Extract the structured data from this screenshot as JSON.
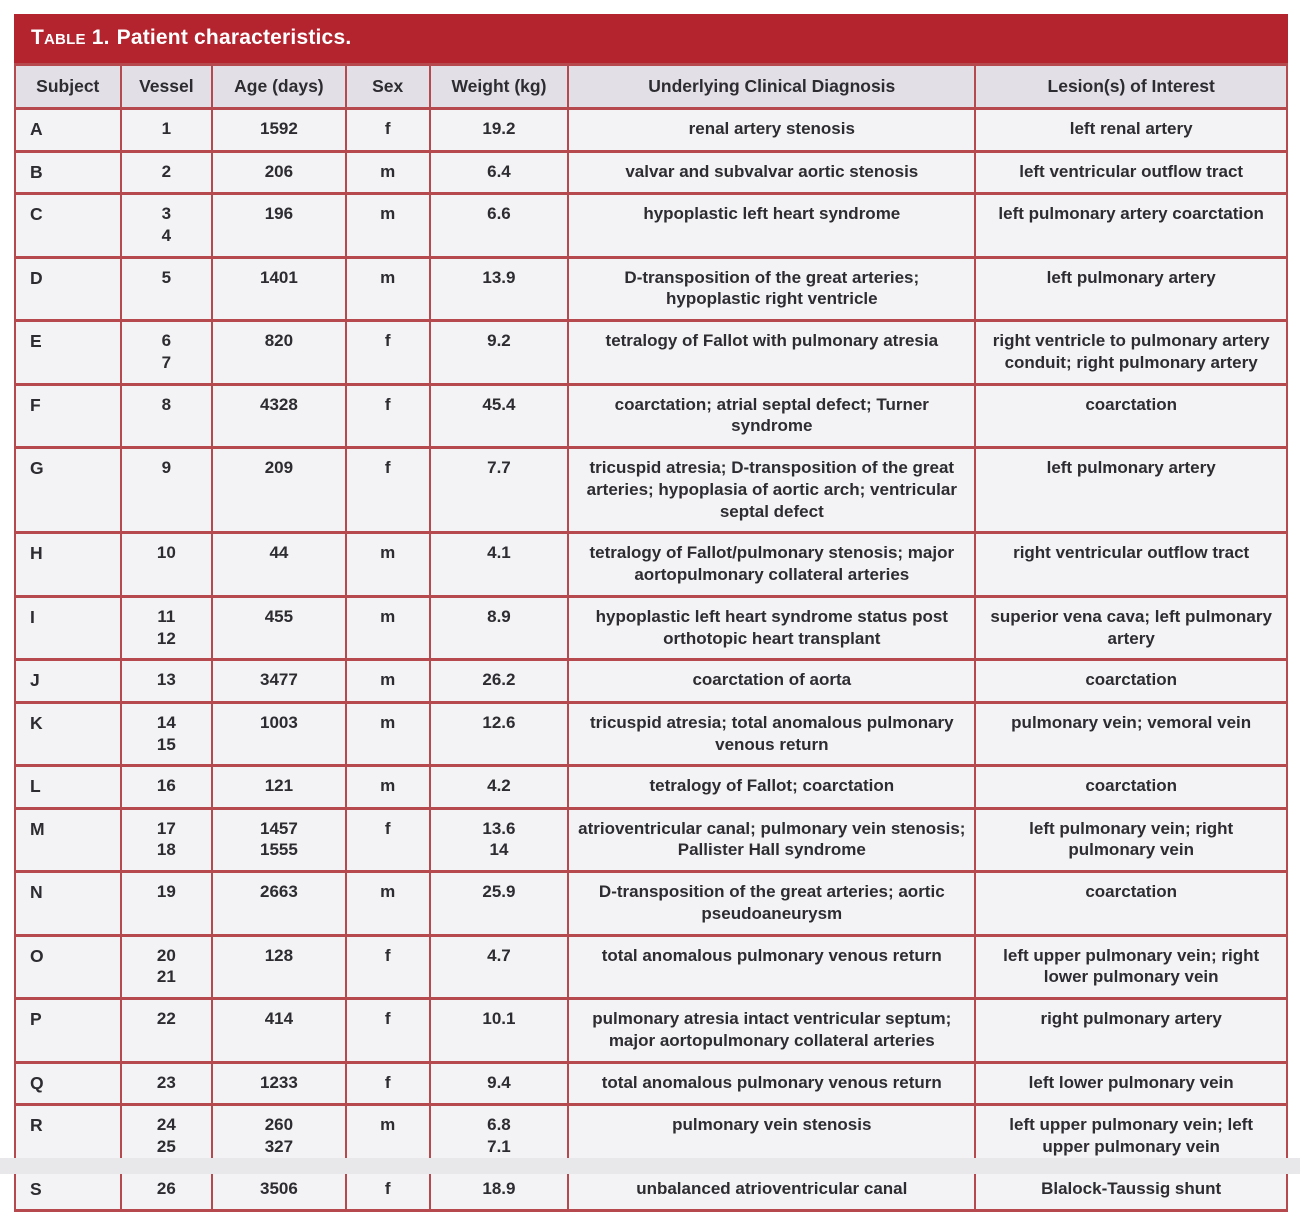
{
  "table": {
    "title": {
      "prefix": "Table 1.",
      "rest": "Patient characteristics."
    },
    "columns": [
      "Subject",
      "Vessel",
      "Age (days)",
      "Sex",
      "Weight (kg)",
      "Underlying Clinical Diagnosis",
      "Lesion(s) of Interest"
    ],
    "rows": [
      {
        "subject": "A",
        "vessel": "1",
        "age": "1592",
        "sex": "f",
        "weight": "19.2",
        "diagnosis": "renal artery stenosis",
        "lesion": "left renal artery"
      },
      {
        "subject": "B",
        "vessel": "2",
        "age": "206",
        "sex": "m",
        "weight": "6.4",
        "diagnosis": "valvar and subvalvar aortic stenosis",
        "lesion": "left ventricular outflow tract"
      },
      {
        "subject": "C",
        "vessel": "3\n4",
        "age": "196",
        "sex": "m",
        "weight": "6.6",
        "diagnosis": "hypoplastic left heart syndrome",
        "lesion": "left pulmonary artery coarctation"
      },
      {
        "subject": "D",
        "vessel": "5",
        "age": "1401",
        "sex": "m",
        "weight": "13.9",
        "diagnosis": "D-transposition of the great arteries; hypoplastic right ventricle",
        "lesion": "left pulmonary artery"
      },
      {
        "subject": "E",
        "vessel": "6\n7",
        "age": "820",
        "sex": "f",
        "weight": "9.2",
        "diagnosis": "tetralogy of Fallot with pulmonary atresia",
        "lesion": "right ventricle to pulmonary artery conduit; right pulmonary artery"
      },
      {
        "subject": "F",
        "vessel": "8",
        "age": "4328",
        "sex": "f",
        "weight": "45.4",
        "diagnosis": "coarctation; atrial septal defect; Turner syndrome",
        "lesion": "coarctation"
      },
      {
        "subject": "G",
        "vessel": "9",
        "age": "209",
        "sex": "f",
        "weight": "7.7",
        "diagnosis": "tricuspid atresia; D-transposition of the great arteries; hypoplasia of aortic arch; ventricular septal defect",
        "lesion": "left pulmonary artery"
      },
      {
        "subject": "H",
        "vessel": "10",
        "age": "44",
        "sex": "m",
        "weight": "4.1",
        "diagnosis": "tetralogy of Fallot/pulmonary stenosis; major aortopulmonary collateral arteries",
        "lesion": "right ventricular outflow tract"
      },
      {
        "subject": "I",
        "vessel": "11\n12",
        "age": "455",
        "sex": "m",
        "weight": "8.9",
        "diagnosis": "hypoplastic left heart syndrome status post orthotopic heart transplant",
        "lesion": "superior vena cava; left pulmonary artery"
      },
      {
        "subject": "J",
        "vessel": "13",
        "age": "3477",
        "sex": "m",
        "weight": "26.2",
        "diagnosis": "coarctation of aorta",
        "lesion": "coarctation"
      },
      {
        "subject": "K",
        "vessel": "14\n15",
        "age": "1003",
        "sex": "m",
        "weight": "12.6",
        "diagnosis": "tricuspid atresia; total anomalous pulmonary venous return",
        "lesion": "pulmonary vein; vemoral vein"
      },
      {
        "subject": "L",
        "vessel": "16",
        "age": "121",
        "sex": "m",
        "weight": "4.2",
        "diagnosis": "tetralogy of Fallot; coarctation",
        "lesion": "coarctation"
      },
      {
        "subject": "M",
        "vessel": "17\n18",
        "age": "1457\n1555",
        "sex": "f",
        "weight": "13.6\n14",
        "diagnosis": "atrioventricular canal; pulmonary vein stenosis; Pallister Hall syndrome",
        "lesion": "left pulmonary vein; right pulmonary vein"
      },
      {
        "subject": "N",
        "vessel": "19",
        "age": "2663",
        "sex": "m",
        "weight": "25.9",
        "diagnosis": "D-transposition of the great arteries; aortic pseudoaneurysm",
        "lesion": "coarctation"
      },
      {
        "subject": "O",
        "vessel": "20\n21",
        "age": "128",
        "sex": "f",
        "weight": "4.7",
        "diagnosis": "total anomalous pulmonary venous return",
        "lesion": "left upper pulmonary vein; right lower pulmonary vein"
      },
      {
        "subject": "P",
        "vessel": "22",
        "age": "414",
        "sex": "f",
        "weight": "10.1",
        "diagnosis": "pulmonary atresia intact ventricular septum; major aortopulmonary collateral arteries",
        "lesion": "right pulmonary artery"
      },
      {
        "subject": "Q",
        "vessel": "23",
        "age": "1233",
        "sex": "f",
        "weight": "9.4",
        "diagnosis": "total anomalous pulmonary venous return",
        "lesion": "left lower pulmonary vein"
      },
      {
        "subject": "R",
        "vessel": "24\n25",
        "age": "260\n327",
        "sex": "m",
        "weight": "6.8\n7.1",
        "diagnosis": "pulmonary vein stenosis",
        "lesion": "left upper pulmonary vein; left upper pulmonary vein"
      },
      {
        "subject": "S",
        "vessel": "26",
        "age": "3506",
        "sex": "f",
        "weight": "18.9",
        "diagnosis": "unbalanced atrioventricular canal",
        "lesion": "Blalock-Taussig shunt"
      }
    ]
  },
  "colors": {
    "title_bar": "#b3242f",
    "header_bg": "#e2e0e6",
    "row_bg": "#f3f3f5",
    "border": "#b6494d",
    "text": "#2d2c31",
    "title_text": "#ffffff",
    "footer_strip": "#e8e8ea"
  }
}
